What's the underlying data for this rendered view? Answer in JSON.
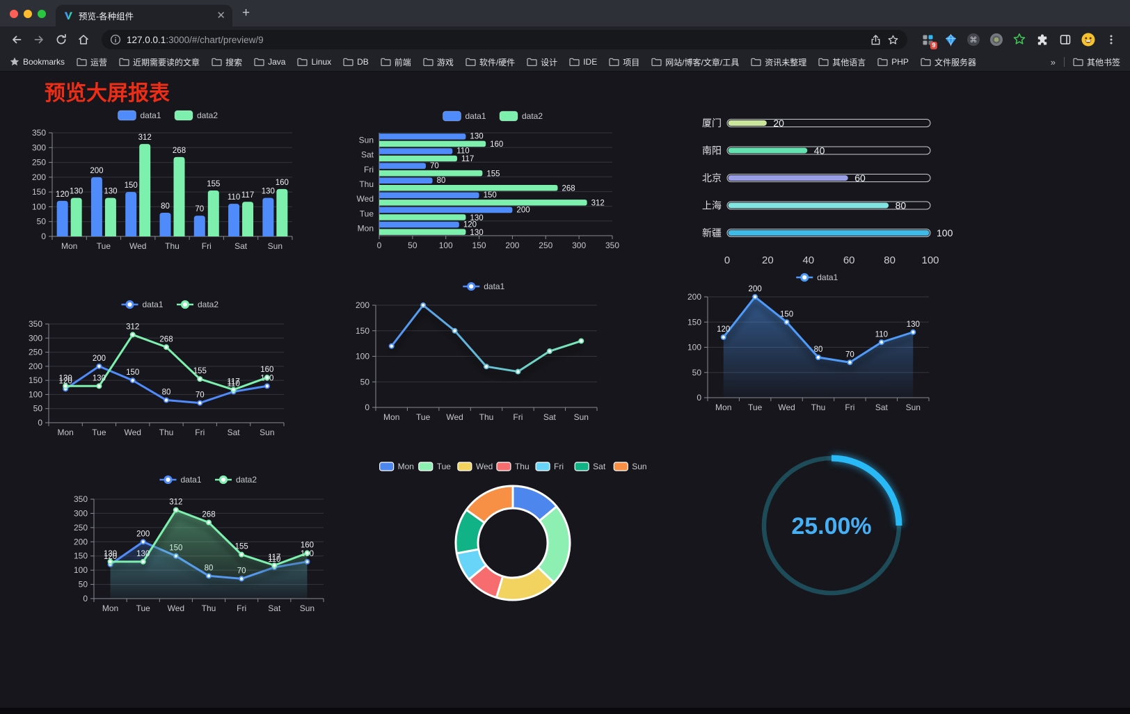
{
  "browser": {
    "tab_title": "预览-各种组件",
    "url_host": "127.0.0.1",
    "url_rest": ":3000/#/chart/preview/9",
    "new_tab_label": "+",
    "bookmarks_label": "Bookmarks",
    "bookmarks": [
      "运营",
      "近期需要读的文章",
      "搜索",
      "Java",
      "Linux",
      "DB",
      "前端",
      "游戏",
      "软件/硬件",
      "设计",
      "IDE",
      "项目",
      "网站/博客/文章/工具",
      "资讯未整理",
      "其他语言",
      "PHP",
      "文件服务器"
    ],
    "bookmarks_overflow": "»",
    "other_bookmarks_label": "其他书签",
    "extension_badge": "9"
  },
  "page": {
    "title": "预览大屏报表",
    "title_color": "#ee2d16",
    "background": "#16161c"
  },
  "chart_data": [
    {
      "id": "c1",
      "name": "grouped-bar-chart",
      "type": "bar",
      "categories": [
        "Mon",
        "Tue",
        "Wed",
        "Thu",
        "Fri",
        "Sat",
        "Sun"
      ],
      "series": [
        {
          "name": "data1",
          "color": "#4f8bfa",
          "values": [
            120,
            200,
            150,
            80,
            70,
            110,
            130
          ]
        },
        {
          "name": "data2",
          "color": "#7df0ae",
          "values": [
            130,
            130,
            312,
            268,
            155,
            117,
            160
          ]
        }
      ],
      "ylim": [
        0,
        350
      ],
      "yticks": [
        0,
        50,
        100,
        150,
        200,
        250,
        300,
        350
      ],
      "grid": true,
      "legend_position": "top",
      "labels": true
    },
    {
      "id": "c2",
      "name": "horizontal-bar-chart",
      "type": "bar-horizontal",
      "categories": [
        "Mon",
        "Tue",
        "Wed",
        "Thu",
        "Fri",
        "Sat",
        "Sun"
      ],
      "series": [
        {
          "name": "data1",
          "color": "#4f8bfa",
          "values": [
            120,
            200,
            150,
            80,
            70,
            110,
            130
          ]
        },
        {
          "name": "data2",
          "color": "#7df0ae",
          "values": [
            130,
            130,
            312,
            268,
            155,
            117,
            160
          ]
        }
      ],
      "xlim": [
        0,
        350
      ],
      "xticks": [
        0,
        50,
        100,
        150,
        200,
        250,
        300,
        350
      ],
      "grid": true,
      "legend_position": "top",
      "labels": true
    },
    {
      "id": "c3",
      "name": "progress-bar-chart",
      "type": "progress",
      "items": [
        {
          "label": "厦门",
          "value": 20,
          "color": "#c9e69c"
        },
        {
          "label": "南阳",
          "value": 40,
          "color": "#63e2b0"
        },
        {
          "label": "北京",
          "value": 60,
          "color": "#9a9ee4"
        },
        {
          "label": "上海",
          "value": 80,
          "color": "#82e5e2"
        },
        {
          "label": "新疆",
          "value": 100,
          "color": "#3fbae6"
        }
      ],
      "xlim": [
        0,
        100
      ],
      "xticks": [
        0,
        20,
        40,
        60,
        80,
        100
      ]
    },
    {
      "id": "c4",
      "name": "line-chart-two-series",
      "type": "line",
      "categories": [
        "Mon",
        "Tue",
        "Wed",
        "Thu",
        "Fri",
        "Sat",
        "Sun"
      ],
      "series": [
        {
          "name": "data1",
          "color": "#4f8bfa",
          "values": [
            120,
            200,
            150,
            80,
            70,
            110,
            130
          ]
        },
        {
          "name": "data2",
          "color": "#7df0ae",
          "values": [
            130,
            130,
            312,
            268,
            155,
            117,
            160
          ]
        }
      ],
      "ylim": [
        0,
        350
      ],
      "yticks": [
        0,
        50,
        100,
        150,
        200,
        250,
        300,
        350
      ],
      "grid": true,
      "legend_position": "top",
      "labels": true,
      "area": false
    },
    {
      "id": "c5",
      "name": "gradient-line-chart",
      "type": "line",
      "categories": [
        "Mon",
        "Tue",
        "Wed",
        "Thu",
        "Fri",
        "Sat",
        "Sun"
      ],
      "series": [
        {
          "name": "data1",
          "color_start": "#4f8bfa",
          "color_end": "#7df0ae",
          "values": [
            120,
            200,
            150,
            80,
            70,
            110,
            130
          ]
        }
      ],
      "ylim": [
        0,
        200
      ],
      "yticks": [
        0,
        50,
        100,
        150,
        200
      ],
      "grid": true,
      "legend_position": "top",
      "labels": false,
      "area": false,
      "shadow": true
    },
    {
      "id": "c6",
      "name": "area-line-chart-blue",
      "type": "line",
      "categories": [
        "Mon",
        "Tue",
        "Wed",
        "Thu",
        "Fri",
        "Sat",
        "Sun"
      ],
      "series": [
        {
          "name": "data1",
          "color": "#4f9bfa",
          "values": [
            120,
            200,
            150,
            80,
            70,
            110,
            130
          ]
        }
      ],
      "ylim": [
        0,
        200
      ],
      "yticks": [
        0,
        50,
        100,
        150,
        200
      ],
      "grid": true,
      "legend_position": "top",
      "labels": true,
      "area": true,
      "shadow": true
    },
    {
      "id": "c7",
      "name": "area-line-chart-two-series",
      "type": "line",
      "categories": [
        "Mon",
        "Tue",
        "Wed",
        "Thu",
        "Fri",
        "Sat",
        "Sun"
      ],
      "series": [
        {
          "name": "data1",
          "color": "#4f8bfa",
          "values": [
            120,
            200,
            150,
            80,
            70,
            110,
            130
          ]
        },
        {
          "name": "data2",
          "color": "#7df0ae",
          "values": [
            130,
            130,
            312,
            268,
            155,
            117,
            160
          ]
        }
      ],
      "ylim": [
        0,
        350
      ],
      "yticks": [
        0,
        50,
        100,
        150,
        200,
        250,
        300,
        350
      ],
      "grid": true,
      "legend_position": "top",
      "labels": true,
      "area": true,
      "shadow": true
    },
    {
      "id": "c8",
      "name": "donut-pie-chart",
      "type": "pie",
      "items": [
        {
          "label": "Mon",
          "value": 120,
          "color": "#4d87ee"
        },
        {
          "label": "Tue",
          "value": 200,
          "color": "#8df0b2"
        },
        {
          "label": "Wed",
          "value": 150,
          "color": "#f2d35f"
        },
        {
          "label": "Thu",
          "value": 80,
          "color": "#f76d6f"
        },
        {
          "label": "Fri",
          "value": 70,
          "color": "#68d5f8"
        },
        {
          "label": "Sat",
          "value": 110,
          "color": "#12b287"
        },
        {
          "label": "Sun",
          "value": 130,
          "color": "#f79044"
        }
      ],
      "legend_position": "top"
    },
    {
      "id": "c9",
      "name": "gauge-progress-ring",
      "type": "gauge",
      "value": 25,
      "display": "25.00%",
      "color": "#29b9f6",
      "track_color": "#1d4b57",
      "text_color": "#47b0f5"
    }
  ]
}
